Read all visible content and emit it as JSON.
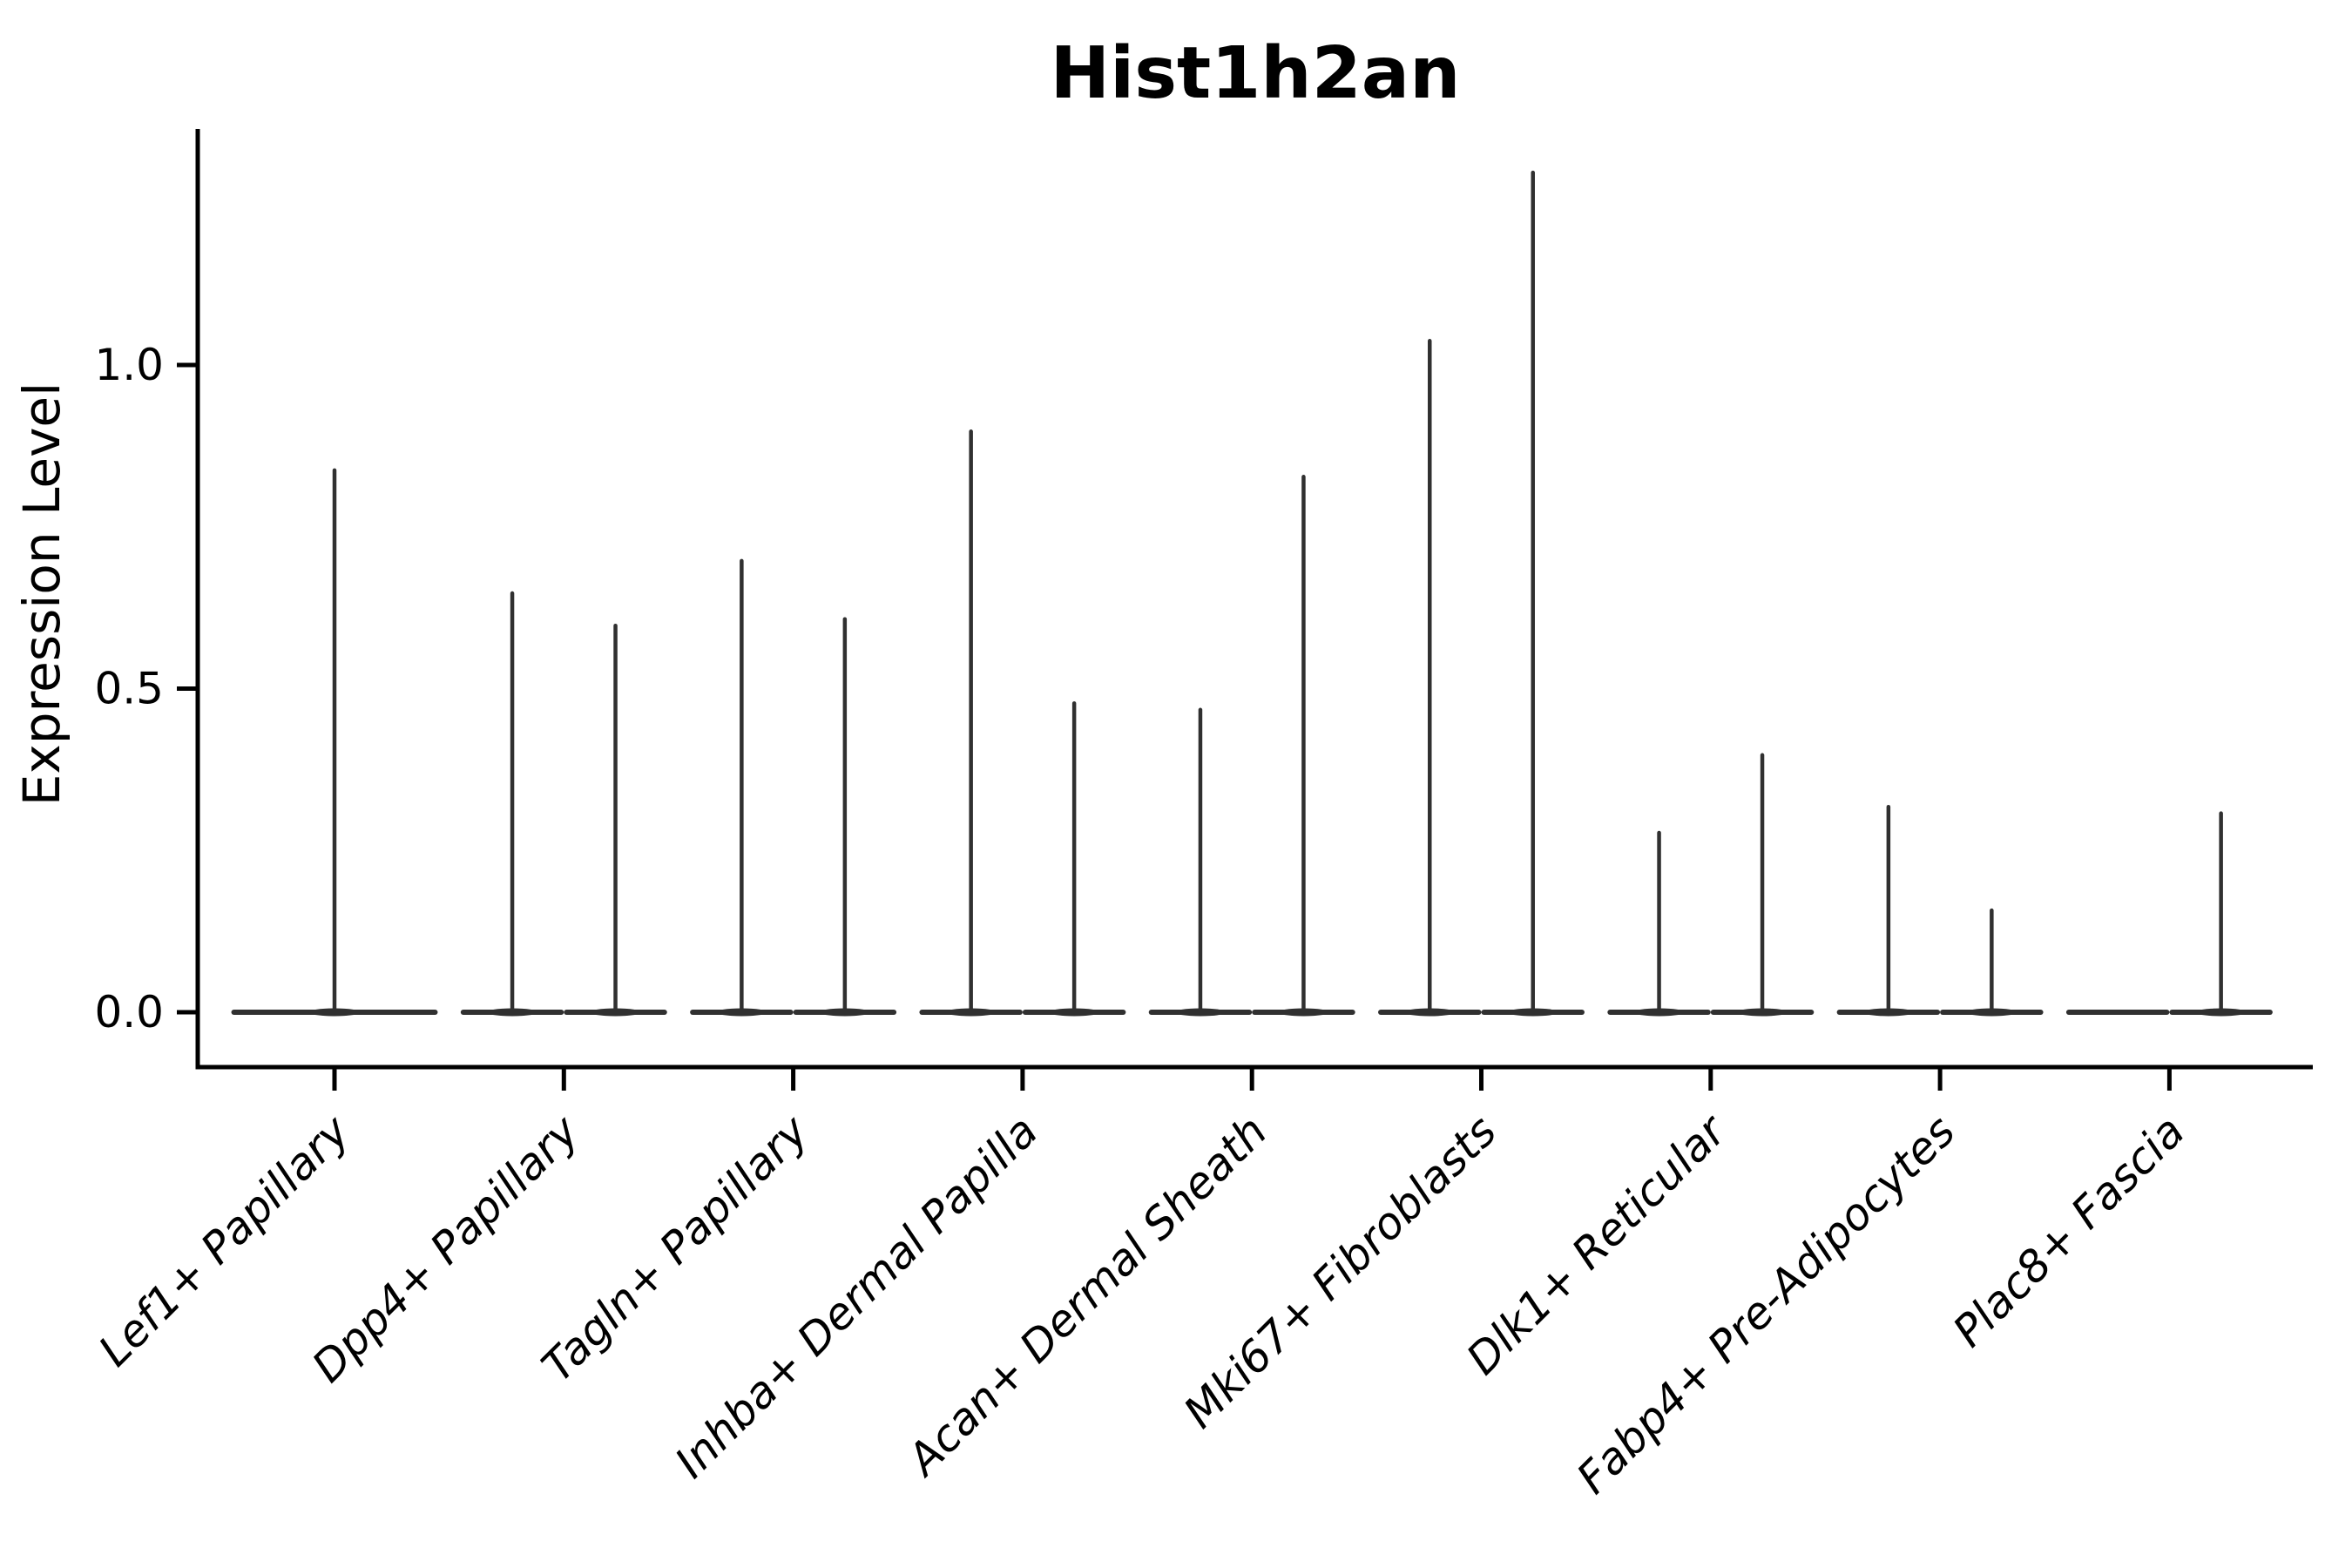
{
  "figure": {
    "title": "Hist1h2an"
  },
  "y_axis": {
    "label": "Expression Level",
    "tick_labels": [
      "0.0",
      "0.5",
      "1.0"
    ]
  },
  "x_axis": {
    "tick_labels": [
      "Lef1+ Papillary",
      "Dpp4+ Papillary",
      "Tagln+ Papillary",
      "Inhba+ Dermal Papilla",
      "Acan+ Dermal Sheath",
      "Mki67+ Fibroblasts",
      "Dlk1+ Reticular",
      "Fabp4+ Pre-Adipocytes",
      "Plac8+ Fascia"
    ]
  },
  "style": {
    "violin_color": "#303030",
    "axis_color": "#000000",
    "text_color": "#000000",
    "background": "#ffffff"
  },
  "chart_data": {
    "type": "violin",
    "title": "Hist1h2an",
    "ylabel": "Expression Level",
    "xlabel": "",
    "ylim": [
      -0.09,
      1.37
    ],
    "yticks": [
      0,
      0.5,
      1.0
    ],
    "grid": false,
    "legend": "none",
    "x_tick_rotation_deg": 45,
    "categories": [
      "Lef1+ Papillary",
      "Dpp4+ Papillary",
      "Tagln+ Papillary",
      "Inhba+ Dermal Papilla",
      "Acan+ Dermal Sheath",
      "Mki67+ Fibroblasts",
      "Dlk1+ Reticular",
      "Fabp4+ Pre-Adipocytes",
      "Plac8+ Fascia"
    ],
    "series": [
      {
        "category": "Lef1+ Papillary",
        "violins": [
          {
            "offset": 0.0,
            "width": 0.9,
            "max_expression": 0.84
          }
        ]
      },
      {
        "category": "Dpp4+ Papillary",
        "violins": [
          {
            "offset": -0.225,
            "width": 0.45,
            "max_expression": 0.65
          },
          {
            "offset": 0.225,
            "width": 0.45,
            "max_expression": 0.6
          }
        ]
      },
      {
        "category": "Tagln+ Papillary",
        "violins": [
          {
            "offset": -0.225,
            "width": 0.45,
            "max_expression": 0.7
          },
          {
            "offset": 0.225,
            "width": 0.45,
            "max_expression": 0.61
          }
        ]
      },
      {
        "category": "Inhba+ Dermal Papilla",
        "violins": [
          {
            "offset": -0.225,
            "width": 0.45,
            "max_expression": 0.9
          },
          {
            "offset": 0.225,
            "width": 0.45,
            "max_expression": 0.48
          }
        ]
      },
      {
        "category": "Acan+ Dermal Sheath",
        "violins": [
          {
            "offset": -0.225,
            "width": 0.45,
            "max_expression": 0.47
          },
          {
            "offset": 0.225,
            "width": 0.45,
            "max_expression": 0.83
          }
        ]
      },
      {
        "category": "Mki67+ Fibroblasts",
        "violins": [
          {
            "offset": -0.225,
            "width": 0.45,
            "max_expression": 1.04
          },
          {
            "offset": 0.225,
            "width": 0.45,
            "max_expression": 1.3
          }
        ]
      },
      {
        "category": "Dlk1+ Reticular",
        "violins": [
          {
            "offset": -0.225,
            "width": 0.45,
            "max_expression": 0.28
          },
          {
            "offset": 0.225,
            "width": 0.45,
            "max_expression": 0.4
          }
        ]
      },
      {
        "category": "Fabp4+ Pre-Adipocytes",
        "violins": [
          {
            "offset": -0.225,
            "width": 0.45,
            "max_expression": 0.32
          },
          {
            "offset": 0.225,
            "width": 0.45,
            "max_expression": 0.16
          }
        ]
      },
      {
        "category": "Plac8+ Fascia",
        "violins": [
          {
            "offset": -0.225,
            "width": 0.45,
            "max_expression": 0.0
          },
          {
            "offset": 0.225,
            "width": 0.45,
            "max_expression": 0.31
          }
        ]
      }
    ]
  }
}
